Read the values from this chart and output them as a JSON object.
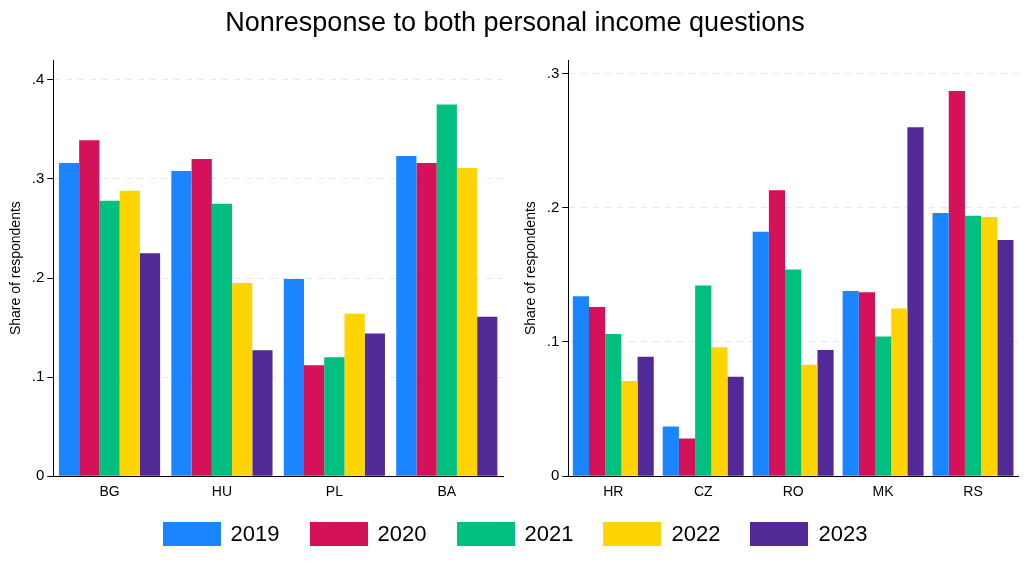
{
  "chart_data": [
    {
      "type": "bar",
      "title": "Nonresponse to both personal income questions",
      "ylabel": "Share of respondents",
      "categories": [
        "BG",
        "HU",
        "PL",
        "BA"
      ],
      "series": [
        {
          "name": "2019",
          "color": "#1a85ff",
          "values": [
            0.316,
            0.308,
            0.199,
            0.323
          ]
        },
        {
          "name": "2020",
          "color": "#d41159",
          "values": [
            0.339,
            0.32,
            0.112,
            0.316
          ]
        },
        {
          "name": "2021",
          "color": "#00bf7f",
          "values": [
            0.278,
            0.275,
            0.12,
            0.375
          ]
        },
        {
          "name": "2022",
          "color": "#ffd400",
          "values": [
            0.288,
            0.195,
            0.164,
            0.311
          ]
        },
        {
          "name": "2023",
          "color": "#512a97",
          "values": [
            0.225,
            0.127,
            0.144,
            0.161
          ]
        }
      ],
      "ylim": [
        0,
        0.42
      ],
      "yticks": [
        0,
        {
          "value": 0.1,
          "label": ".1"
        },
        {
          "value": 0.2,
          "label": ".2"
        },
        {
          "value": 0.3,
          "label": ".3"
        },
        {
          "value": 0.4,
          "label": ".4"
        }
      ],
      "grid": "y",
      "legend": "bottom"
    },
    {
      "type": "bar",
      "ylabel": "Share of respondents",
      "categories": [
        "HR",
        "CZ",
        "RO",
        "MK",
        "RS"
      ],
      "series": [
        {
          "name": "2019",
          "color": "#1a85ff",
          "values": [
            0.134,
            0.037,
            0.182,
            0.138,
            0.196
          ]
        },
        {
          "name": "2020",
          "color": "#d41159",
          "values": [
            0.126,
            0.028,
            0.213,
            0.137,
            0.287
          ]
        },
        {
          "name": "2021",
          "color": "#00bf7f",
          "values": [
            0.106,
            0.142,
            0.154,
            0.104,
            0.194
          ]
        },
        {
          "name": "2022",
          "color": "#ffd400",
          "values": [
            0.071,
            0.096,
            0.083,
            0.125,
            0.193
          ]
        },
        {
          "name": "2023",
          "color": "#512a97",
          "values": [
            0.089,
            0.074,
            0.094,
            0.26,
            0.176
          ]
        }
      ],
      "ylim": [
        0,
        0.31
      ],
      "yticks": [
        0,
        {
          "value": 0.1,
          "label": ".1"
        },
        {
          "value": 0.2,
          "label": ".2"
        },
        {
          "value": 0.3,
          "label": ".3"
        }
      ],
      "grid": "y"
    }
  ]
}
